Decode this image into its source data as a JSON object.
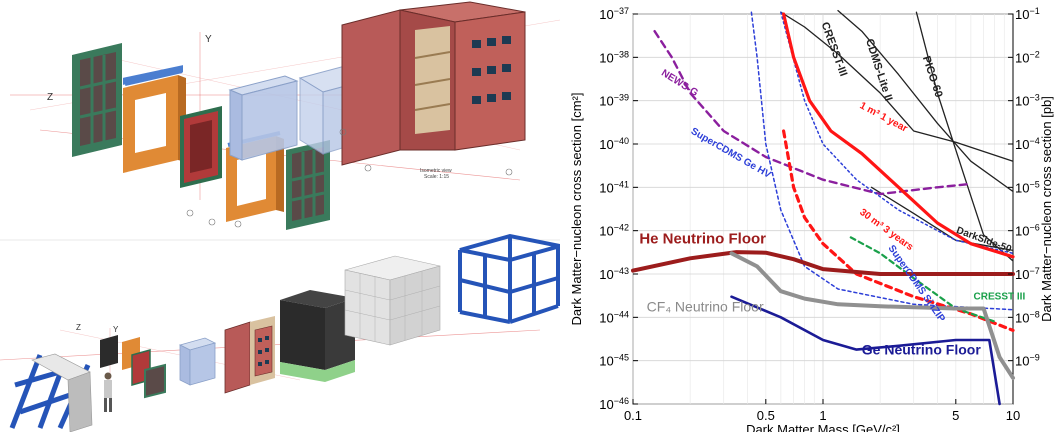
{
  "figure": {
    "left_panel": {
      "top_axis_labels": [
        "Z",
        "Y"
      ],
      "bottom_axis_labels": [
        "Z",
        "Y"
      ],
      "view_caption": [
        "Isometric view",
        "Scale: 1:15"
      ]
    },
    "colors": {
      "steel_frame": "#3a7a5c",
      "copper": "#e08a35",
      "vessel_red": "#b13a3a",
      "shield_box": "#c0605a",
      "acrylic": "#b6c6e6",
      "hdpe_black": "#2b2b2b",
      "hdpe_green": "#8fd18a",
      "water_blocks": "#dcdcdc",
      "support_blue": "#2554b8"
    }
  },
  "chart_data": {
    "type": "line",
    "xlabel": "Dark Matter Mass [GeV/c²]",
    "ylabel_left": "Dark Matter−nucleon cross section [cm²]",
    "ylabel_right": "Dark Matter−nucleon cross section [pb]",
    "x_scale": "log",
    "y_scale": "log",
    "xlim": [
      0.1,
      10
    ],
    "ylim": [
      1e-46,
      1e-37
    ],
    "grid": true,
    "x_ticks": [
      {
        "value": 0.1,
        "label": "0.1"
      },
      {
        "value": 0.5,
        "label": "0.5"
      },
      {
        "value": 1,
        "label": "1"
      },
      {
        "value": 5,
        "label": "5"
      },
      {
        "value": 10,
        "label": "10"
      }
    ],
    "y_ticks_left": [
      {
        "exp": -37,
        "base": "10",
        "sup": "−37"
      },
      {
        "exp": -38,
        "base": "10",
        "sup": "−38"
      },
      {
        "exp": -39,
        "base": "10",
        "sup": "−39"
      },
      {
        "exp": -40,
        "base": "10",
        "sup": "−40"
      },
      {
        "exp": -41,
        "base": "10",
        "sup": "−41"
      },
      {
        "exp": -42,
        "base": "10",
        "sup": "−42"
      },
      {
        "exp": -43,
        "base": "10",
        "sup": "−43"
      },
      {
        "exp": -44,
        "base": "10",
        "sup": "−44"
      },
      {
        "exp": -45,
        "base": "10",
        "sup": "−45"
      },
      {
        "exp": -46,
        "base": "10",
        "sup": "−46"
      }
    ],
    "y_ticks_right": [
      {
        "exp": -37,
        "base": "10",
        "sup": "−1"
      },
      {
        "exp": -38,
        "base": "10",
        "sup": "−2"
      },
      {
        "exp": -39,
        "base": "10",
        "sup": "−3"
      },
      {
        "exp": -40,
        "base": "10",
        "sup": "−4"
      },
      {
        "exp": -41,
        "base": "10",
        "sup": "−5"
      },
      {
        "exp": -42,
        "base": "10",
        "sup": "−6"
      },
      {
        "exp": -43,
        "base": "10",
        "sup": "−7"
      },
      {
        "exp": -44,
        "base": "10",
        "sup": "−8"
      },
      {
        "exp": -45,
        "base": "10",
        "sup": "−9"
      }
    ],
    "series": [
      {
        "name": "CRESST-III",
        "color": "#222222",
        "width": 1.3,
        "dash": "",
        "points": [
          [
            0.6,
            1.1e-37
          ],
          [
            0.8,
            5e-38
          ],
          [
            1.2,
            1.2e-38
          ],
          [
            2,
            1.5e-39
          ],
          [
            3,
            2e-40
          ],
          [
            5,
            1.1e-40
          ],
          [
            10,
            4e-41
          ]
        ]
      },
      {
        "name": "CDMS-Lite II",
        "color": "#222222",
        "width": 1.3,
        "dash": "",
        "points": [
          [
            1.2,
            1.2e-37
          ],
          [
            1.6,
            4e-38
          ],
          [
            2.5,
            4e-39
          ],
          [
            4,
            3e-40
          ],
          [
            6,
            4e-41
          ],
          [
            10,
            8e-42
          ]
        ]
      },
      {
        "name": "PICO-60",
        "color": "#222222",
        "width": 1.3,
        "dash": "",
        "points": [
          [
            3.1,
            1.1e-37
          ],
          [
            4,
            1.5e-39
          ],
          [
            5.5,
            2e-41
          ],
          [
            7,
            8e-43
          ],
          [
            10,
            2e-43
          ]
        ]
      },
      {
        "name": "DarkSide-50",
        "color": "#222222",
        "width": 1.3,
        "dash": "",
        "points": [
          [
            1.8,
            1e-41
          ],
          [
            3,
            2.5e-42
          ],
          [
            5,
            6e-43
          ],
          [
            10,
            3.5e-43
          ]
        ]
      },
      {
        "name": "NEWS-G",
        "color": "#8b1f9e",
        "width": 2.4,
        "dash": "7,5",
        "points": [
          [
            0.13,
            4e-38
          ],
          [
            0.16,
            1e-38
          ],
          [
            0.2,
            1.5e-39
          ],
          [
            0.3,
            2e-40
          ],
          [
            0.5,
            5e-41
          ],
          [
            1,
            1.5e-41
          ],
          [
            2,
            7e-42
          ],
          [
            4,
            1e-41
          ],
          [
            6,
            1.2e-41
          ]
        ]
      },
      {
        "name": "SuperCDMS Ge HV",
        "color": "#2d3fd8",
        "width": 1.5,
        "dash": "3,3",
        "points": [
          [
            0.42,
            1.1e-37
          ],
          [
            0.45,
            1e-38
          ],
          [
            0.5,
            1e-40
          ],
          [
            0.6,
            3e-42
          ],
          [
            0.8,
            1.5e-43
          ],
          [
            1.2,
            4.5e-44
          ],
          [
            3,
            2e-44
          ],
          [
            10,
            1.5e-44
          ]
        ]
      },
      {
        "name": "SuperCDMS Si iZIP",
        "color": "#2d3fd8",
        "width": 1.5,
        "dash": "2,3",
        "points": [
          [
            0.6,
            1.1e-37
          ],
          [
            0.8,
            1e-39
          ],
          [
            1,
            1e-40
          ],
          [
            1.5,
            1.5e-41
          ],
          [
            2.5,
            3e-42
          ],
          [
            5,
            6e-43
          ],
          [
            10,
            3e-43
          ]
        ]
      },
      {
        "name": "1 m³ 1 year",
        "color": "#ff1515",
        "width": 3.2,
        "dash": "",
        "points": [
          [
            0.62,
            1e-37
          ],
          [
            0.7,
            1e-38
          ],
          [
            0.85,
            1e-39
          ],
          [
            1.1,
            2e-40
          ],
          [
            1.6,
            6e-41
          ],
          [
            2.5,
            1e-41
          ],
          [
            4,
            1.5e-42
          ],
          [
            6,
            5e-43
          ],
          [
            10,
            2.5e-43
          ]
        ]
      },
      {
        "name": "30 m³ 3 years",
        "color": "#ff1515",
        "width": 3.2,
        "dash": "6,5",
        "points": [
          [
            0.62,
            2e-40
          ],
          [
            0.7,
            1e-41
          ],
          [
            0.8,
            2e-42
          ],
          [
            1,
            5e-43
          ],
          [
            1.5,
            1e-43
          ],
          [
            3,
            3e-44
          ],
          [
            6,
            1.2e-44
          ],
          [
            10,
            5e-45
          ]
        ]
      },
      {
        "name": "CRESST III",
        "color": "#1aa04a",
        "width": 2.2,
        "dash": "5,4",
        "points": [
          [
            1.4,
            7e-43
          ],
          [
            2,
            3e-43
          ],
          [
            3,
            8e-44
          ],
          [
            5,
            1.6e-44
          ],
          [
            8,
            8e-45
          ]
        ]
      },
      {
        "name": "He Neutrino Floor",
        "color": "#9c1c1c",
        "width": 4,
        "dash": "",
        "points": [
          [
            0.1,
            1.2e-43
          ],
          [
            0.2,
            2.3e-43
          ],
          [
            0.35,
            3.2e-43
          ],
          [
            0.5,
            3.1e-43
          ],
          [
            0.7,
            2.2e-43
          ],
          [
            1,
            1.3e-43
          ],
          [
            2,
            1e-43
          ],
          [
            4,
            1e-43
          ],
          [
            8,
            1e-43
          ],
          [
            10,
            1e-43
          ]
        ]
      },
      {
        "name": "CF₄ Neutrino Floor",
        "color": "#909090",
        "width": 4,
        "dash": "",
        "points": [
          [
            0.33,
            3e-43
          ],
          [
            0.45,
            1.5e-43
          ],
          [
            0.6,
            4e-44
          ],
          [
            0.8,
            2.7e-44
          ],
          [
            1.2,
            2e-44
          ],
          [
            2,
            1.8e-44
          ],
          [
            5,
            1.6e-44
          ],
          [
            7,
            1.6e-44
          ],
          [
            8.5,
            1.2e-45
          ],
          [
            10,
            4e-46
          ]
        ]
      },
      {
        "name": "Ge Neutrino Floor",
        "color": "#1b1b96",
        "width": 2.6,
        "dash": "",
        "points": [
          [
            0.33,
            3e-44
          ],
          [
            0.6,
            1e-44
          ],
          [
            1,
            3e-45
          ],
          [
            1.5,
            1.8e-45
          ],
          [
            2.5,
            2.2e-45
          ],
          [
            5,
            3e-45
          ],
          [
            7.5,
            3e-45
          ],
          [
            8.5,
            1e-46
          ]
        ]
      }
    ],
    "annotations": [
      {
        "text": "CRESST-III",
        "x": 0.98,
        "y": 6e-38,
        "color": "#222222",
        "size": 11,
        "weight": "bold",
        "rotate": 70
      },
      {
        "text": "CDMS-Lite II",
        "x": 1.68,
        "y": 2.5e-38,
        "color": "#222222",
        "size": 11,
        "weight": "bold",
        "rotate": 72
      },
      {
        "text": "PICO-60",
        "x": 3.35,
        "y": 1e-38,
        "color": "#222222",
        "size": 11,
        "weight": "bold",
        "rotate": 72
      },
      {
        "text": "NEWS-G",
        "x": 0.14,
        "y": 4e-39,
        "color": "#8b1f9e",
        "size": 10,
        "weight": "bold",
        "rotate": 32
      },
      {
        "text": "SuperCDMS Ge HV",
        "x": 0.2,
        "y": 1.8e-40,
        "color": "#2d3fd8",
        "size": 10,
        "weight": "bold",
        "rotate": 30
      },
      {
        "text": "1 m³ 1 year",
        "x": 1.55,
        "y": 7e-40,
        "color": "#ff1515",
        "size": 10,
        "weight": "bold",
        "rotate": 28
      },
      {
        "text": "30 m³ 3 years",
        "x": 1.55,
        "y": 2.5e-42,
        "color": "#ff1515",
        "size": 10,
        "weight": "bold",
        "rotate": 36
      },
      {
        "text": "SuperCDMS Si iZIP",
        "x": 2.2,
        "y": 4e-43,
        "color": "#2d3fd8",
        "size": 10,
        "weight": "bold",
        "rotate": 55
      },
      {
        "text": "DarkSide-50",
        "x": 5.0,
        "y": 9e-43,
        "color": "#222222",
        "size": 10,
        "weight": "bold",
        "rotate": 20
      },
      {
        "text": "CRESST III",
        "x": 6.2,
        "y": 2.6e-44,
        "color": "#1aa04a",
        "size": 10,
        "weight": "bold",
        "rotate": 0
      },
      {
        "text": "He Neutrino Floor",
        "x": 0.108,
        "y": 5e-43,
        "color": "#9c1c1c",
        "size": 15,
        "weight": "bold",
        "rotate": 0
      },
      {
        "text": "CF₄ Neutrino Floor",
        "x": 0.118,
        "y": 1.35e-44,
        "color": "#8a8a8a",
        "size": 14,
        "weight": "normal",
        "rotate": 0
      },
      {
        "text": "Ge Neutrino Floor",
        "x": 1.6,
        "y": 1.4e-45,
        "color": "#1b1b96",
        "size": 14,
        "weight": "bold",
        "rotate": 0
      }
    ]
  }
}
